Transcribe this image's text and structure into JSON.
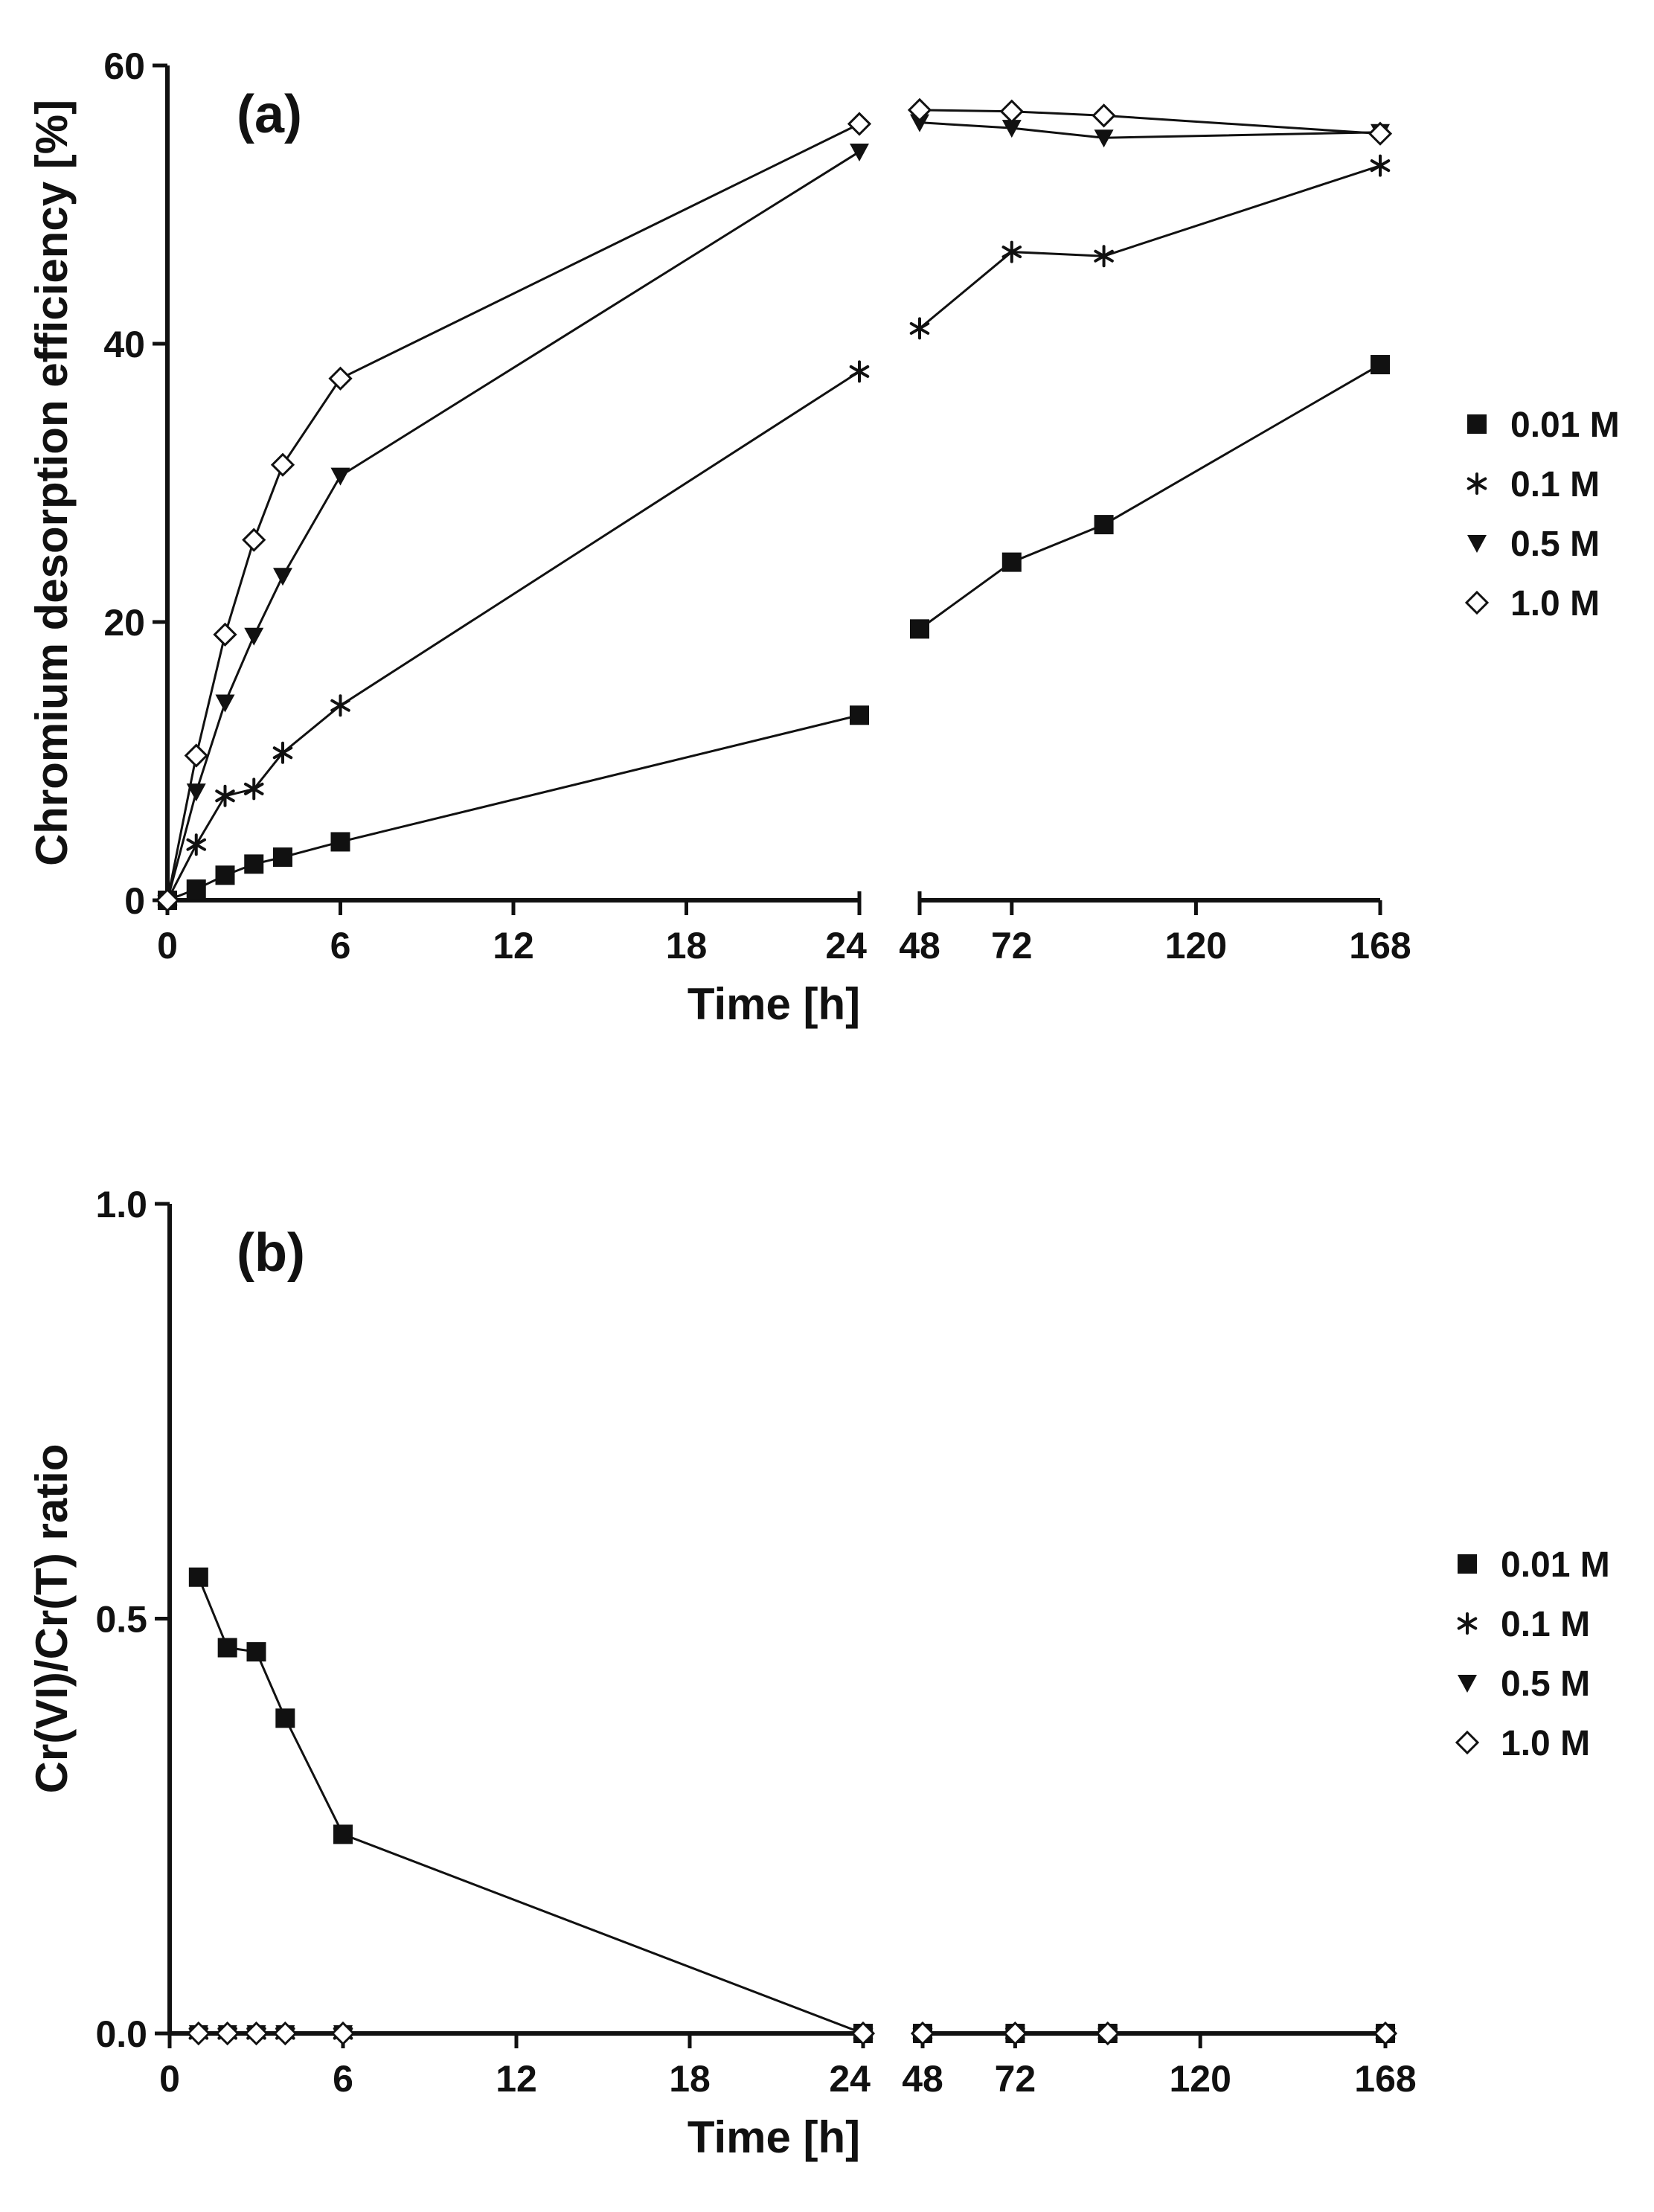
{
  "chart_data": [
    {
      "type": "line",
      "panel_label": "(a)",
      "ylabel": "Chromium desorption efficiency [%]",
      "xlabel": "Time [h]",
      "ylim": [
        0,
        60
      ],
      "yticks": [
        "0",
        "20",
        "40",
        "60"
      ],
      "yticks_values": [
        0,
        20,
        40,
        60
      ],
      "x_axis_break": true,
      "xlim_segment1": [
        0,
        24
      ],
      "xlim_segment2": [
        48,
        168
      ],
      "xticks_segment1": [
        0,
        6,
        12,
        18,
        24
      ],
      "xticks_segment2": [
        48,
        72,
        120,
        168
      ],
      "xtick_labels_segment1": [
        "0",
        "6",
        "12",
        "18",
        "24"
      ],
      "xtick_labels_segment2": [
        "48",
        "72",
        "120",
        "168"
      ],
      "legend_position": "right",
      "series": [
        {
          "name": "0.01 M",
          "marker": "square",
          "x": [
            0,
            1,
            2,
            3,
            4,
            6,
            24,
            48,
            72,
            96,
            168
          ],
          "y": [
            0,
            0.8,
            1.8,
            2.6,
            3.1,
            4.2,
            13.3,
            19.5,
            24.3,
            27.0,
            38.5
          ]
        },
        {
          "name": "0.1 M",
          "marker": "asterisk",
          "x": [
            0,
            1,
            2,
            3,
            4,
            6,
            24,
            48,
            72,
            96,
            168
          ],
          "y": [
            0,
            4.0,
            7.5,
            8.0,
            10.6,
            14.0,
            38.0,
            41.1,
            46.6,
            46.3,
            52.8
          ]
        },
        {
          "name": "0.5 M",
          "marker": "triangle-down",
          "x": [
            0,
            1,
            2,
            3,
            4,
            6,
            24,
            48,
            72,
            96,
            168
          ],
          "y": [
            0,
            7.8,
            14.2,
            19.0,
            23.3,
            30.5,
            53.8,
            55.9,
            55.5,
            54.8,
            55.2
          ]
        },
        {
          "name": "1.0 M",
          "marker": "diamond-open",
          "x": [
            0,
            1,
            2,
            3,
            4,
            6,
            24,
            48,
            72,
            96,
            168
          ],
          "y": [
            0,
            10.4,
            19.1,
            25.9,
            31.3,
            37.5,
            55.8,
            56.8,
            56.7,
            56.4,
            55.1
          ]
        }
      ]
    },
    {
      "type": "line",
      "panel_label": "(b)",
      "ylabel": "Cr(VI)/Cr(T) ratio",
      "xlabel": "Time [h]",
      "ylim": [
        0,
        1
      ],
      "yticks": [
        "0.0",
        "0.5",
        "1.0"
      ],
      "yticks_values": [
        0,
        0.5,
        1.0
      ],
      "x_axis_break": true,
      "xlim_segment1": [
        0,
        24
      ],
      "xlim_segment2": [
        48,
        168
      ],
      "xticks_segment1": [
        0,
        6,
        12,
        18,
        24
      ],
      "xticks_segment2": [
        48,
        72,
        120,
        168
      ],
      "xtick_labels_segment1": [
        "0",
        "6",
        "12",
        "18",
        "24"
      ],
      "xtick_labels_segment2": [
        "48",
        "72",
        "120",
        "168"
      ],
      "legend_position": "right",
      "series": [
        {
          "name": "0.01 M",
          "marker": "square",
          "x": [
            1,
            2,
            3,
            4,
            6,
            24,
            48,
            72,
            96,
            168
          ],
          "y": [
            0.55,
            0.465,
            0.46,
            0.38,
            0.24,
            0,
            0,
            0,
            0,
            0
          ]
        },
        {
          "name": "0.1 M",
          "marker": "asterisk",
          "x": [
            1,
            2,
            3,
            4,
            6,
            24,
            48,
            72,
            96,
            168
          ],
          "y": [
            0,
            0,
            0,
            0,
            0,
            0,
            0,
            0,
            0,
            0
          ]
        },
        {
          "name": "0.5 M",
          "marker": "triangle-down",
          "x": [
            1,
            2,
            3,
            4,
            6,
            24,
            48,
            72,
            96,
            168
          ],
          "y": [
            0,
            0,
            0,
            0,
            0,
            0,
            0,
            0,
            0,
            0
          ]
        },
        {
          "name": "1.0 M",
          "marker": "diamond-open",
          "x": [
            1,
            2,
            3,
            4,
            6,
            24,
            48,
            72,
            96,
            168
          ],
          "y": [
            0,
            0,
            0,
            0,
            0,
            0,
            0,
            0,
            0,
            0
          ]
        }
      ]
    }
  ]
}
